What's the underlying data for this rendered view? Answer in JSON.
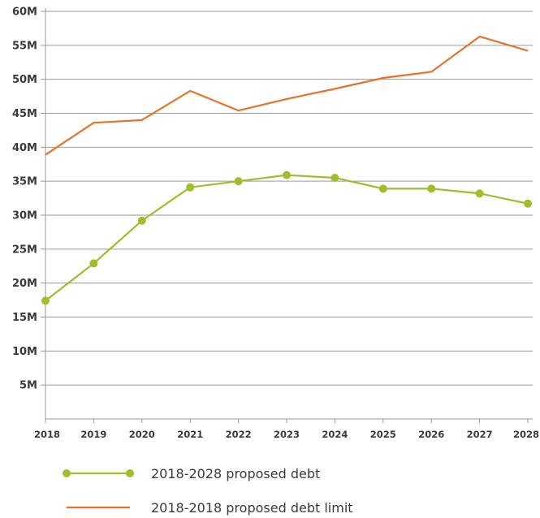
{
  "chart_data": {
    "type": "line",
    "title": "",
    "xlabel": "",
    "ylabel": "",
    "x": [
      "2018",
      "2019",
      "2020",
      "2021",
      "2022",
      "2023",
      "2024",
      "2025",
      "2026",
      "2027",
      "2028"
    ],
    "ylim": [
      0,
      60
    ],
    "y_ticks": [
      5,
      10,
      15,
      20,
      25,
      30,
      35,
      40,
      45,
      50,
      55,
      60
    ],
    "y_tick_labels": [
      "5M",
      "10M",
      "15M",
      "20M",
      "25M",
      "30M",
      "35M",
      "40M",
      "45M",
      "50M",
      "55M",
      "60M"
    ],
    "grid": true,
    "legend_position": "bottom",
    "series": [
      {
        "name": "2018-2028 proposed debt",
        "color": "#9cbf2b",
        "markers": true,
        "values": [
          17.4,
          22.9,
          29.2,
          34.1,
          35.0,
          35.9,
          35.5,
          33.9,
          33.9,
          33.2,
          31.7
        ]
      },
      {
        "name": "2018-2018 proposed debt limit",
        "color": "#e8722a",
        "markers": false,
        "values": [
          38.9,
          43.6,
          44.0,
          48.3,
          45.4,
          47.1,
          48.6,
          50.2,
          51.1,
          56.3,
          54.2
        ]
      }
    ]
  }
}
